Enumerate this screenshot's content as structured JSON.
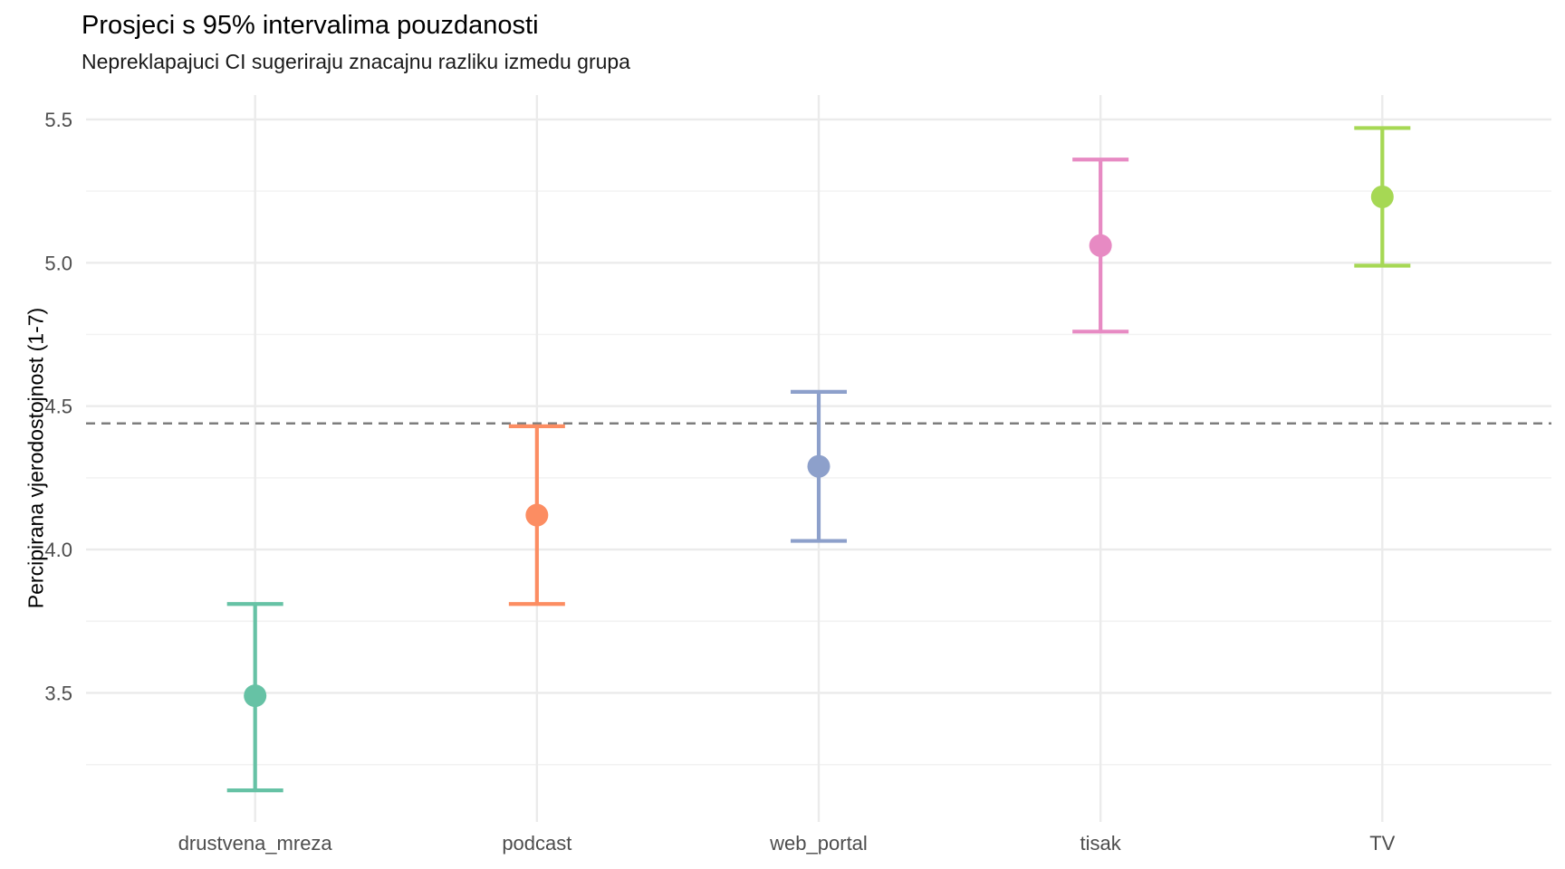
{
  "figure": {
    "title": "Prosjeci s 95% intervalima pouzdanosti",
    "subtitle": "Nepreklapajuci CI sugeriraju znacajnu razliku izmedu grupa"
  },
  "chart_data": {
    "type": "errorbar",
    "title": "Prosjeci s 95% intervalima pouzdanosti",
    "subtitle": "Nepreklapajuci CI sugeriraju znacajnu razliku izmedu grupa",
    "xlabel": "",
    "ylabel": "Percipirana vjerodostojnost (1-7)",
    "categories": [
      "drustvena_mreza",
      "podcast",
      "web_portal",
      "tisak",
      "TV"
    ],
    "series": [
      {
        "name": "drustvena_mreza",
        "mean": 3.49,
        "ci_low": 3.16,
        "ci_high": 3.81,
        "color": "#66C2A5"
      },
      {
        "name": "podcast",
        "mean": 4.12,
        "ci_low": 3.81,
        "ci_high": 4.43,
        "color": "#FC8D62"
      },
      {
        "name": "web_portal",
        "mean": 4.29,
        "ci_low": 4.03,
        "ci_high": 4.55,
        "color": "#8DA0CB"
      },
      {
        "name": "tisak",
        "mean": 5.06,
        "ci_low": 4.76,
        "ci_high": 5.36,
        "color": "#E78AC3"
      },
      {
        "name": "TV",
        "mean": 5.23,
        "ci_low": 4.99,
        "ci_high": 5.47,
        "color": "#A6D854"
      }
    ],
    "yticks": {
      "values": [
        3.5,
        4.0,
        4.5,
        5.0,
        5.5
      ],
      "labels": [
        "3.5",
        "4.0",
        "4.5",
        "5.0",
        "5.5"
      ]
    },
    "minor_yticks": [
      3.25,
      3.75,
      4.25,
      4.75,
      5.25
    ],
    "ylim": [
      3.05,
      5.585
    ],
    "reference_line": {
      "value": 4.44,
      "style": "dashed",
      "color": "#7D7D7D"
    },
    "grid": true,
    "legend": "none",
    "style_colors": {
      "axis_text": "#4D4D4D",
      "grid_major": "#EBEBEB",
      "grid_minor": "#F2F2F2",
      "background": "#FFFFFF"
    }
  }
}
